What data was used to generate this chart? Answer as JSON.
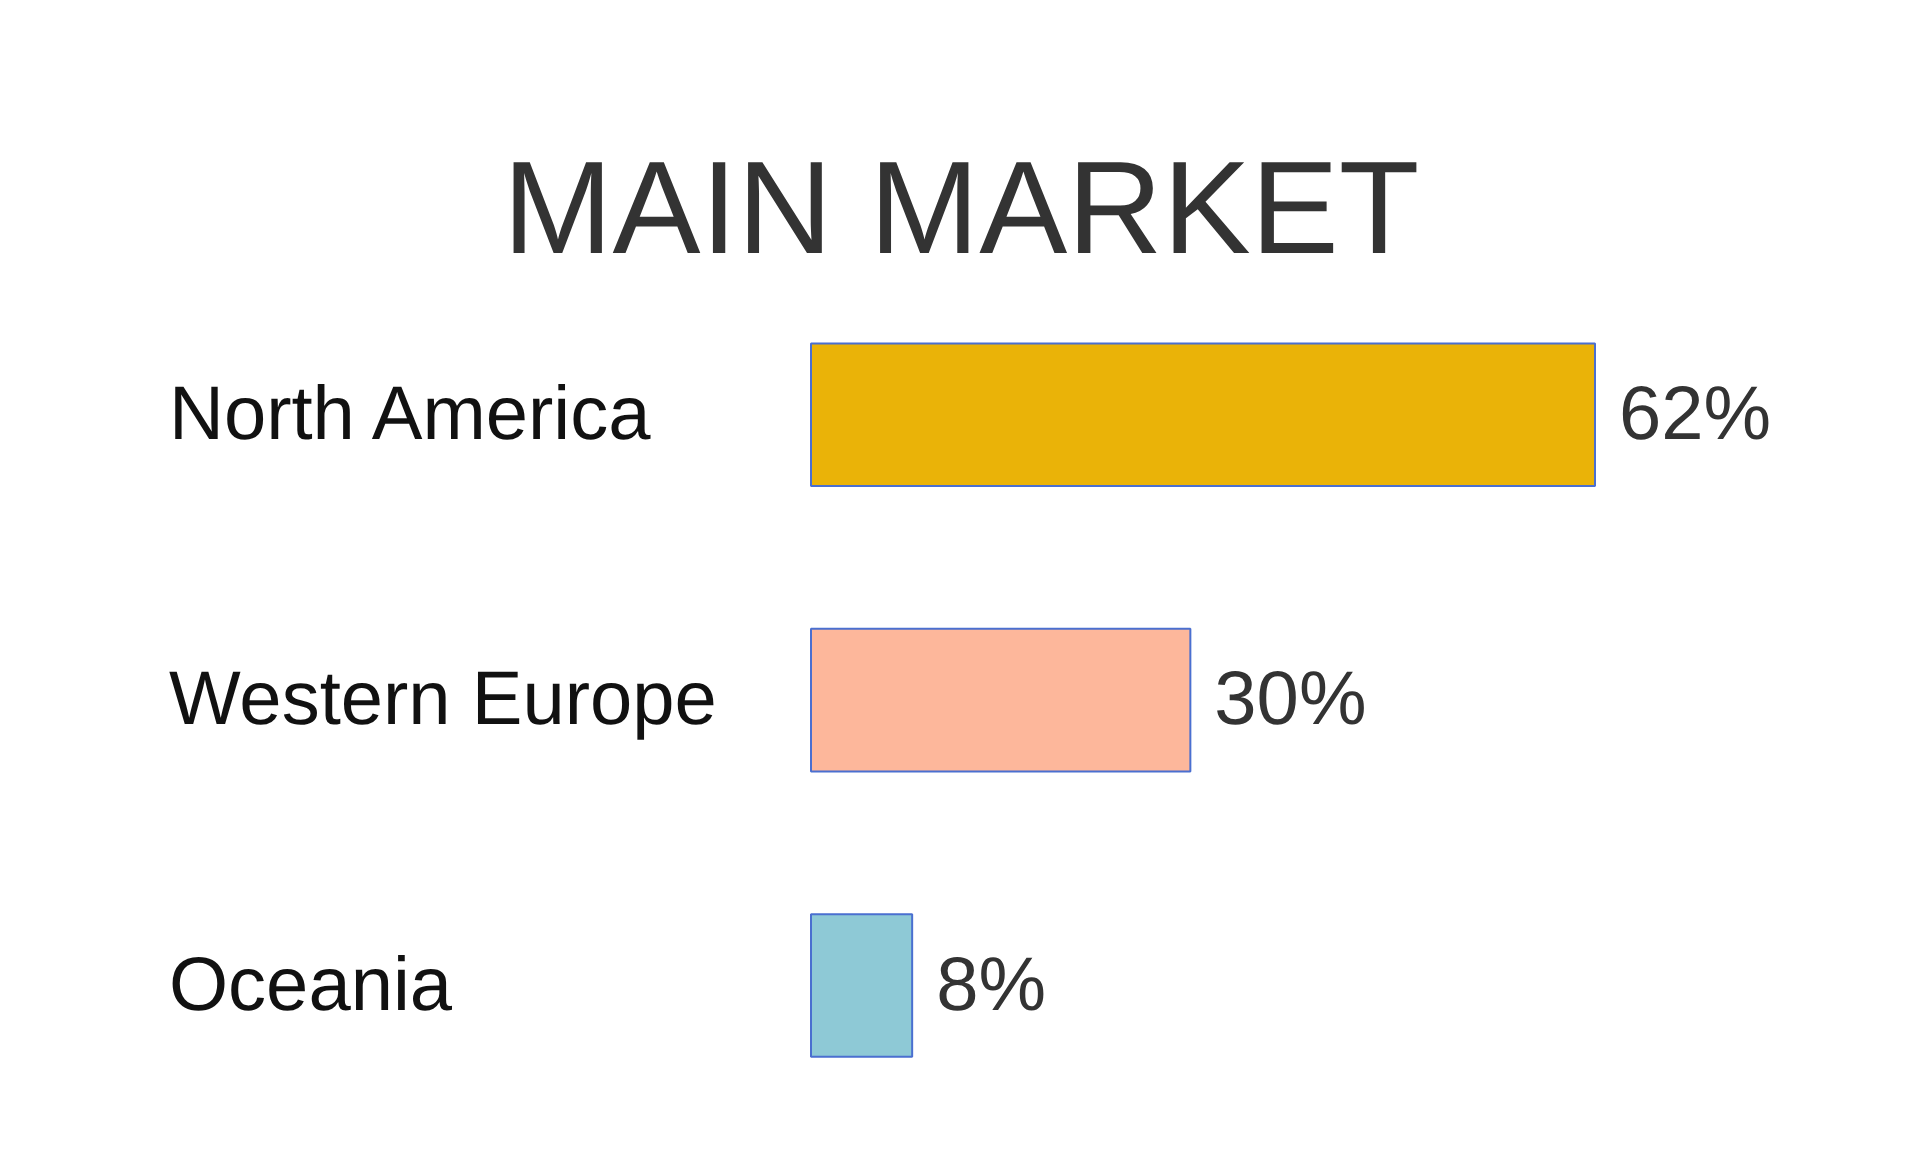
{
  "chart_data": {
    "type": "bar",
    "orientation": "horizontal",
    "title": "MAIN MARKET",
    "categories": [
      "North America",
      "Western Europe",
      "Oceania"
    ],
    "values": [
      62,
      30,
      8
    ],
    "colors": [
      "#eab308",
      "#fdb79b",
      "#8ec9d6"
    ],
    "value_labels": [
      "62%",
      "30%",
      "8%"
    ],
    "grid": false,
    "tick_labels": false
  }
}
